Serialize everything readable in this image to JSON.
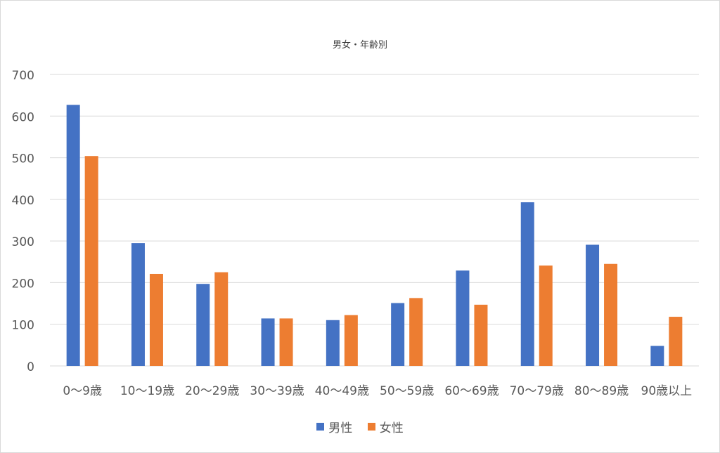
{
  "chart_data": {
    "type": "bar",
    "title": "男女・年齢別",
    "xlabel": "",
    "ylabel": "",
    "ylim": [
      0,
      700
    ],
    "yticks": [
      0,
      100,
      200,
      300,
      400,
      500,
      600,
      700
    ],
    "grid": true,
    "legend_position": "bottom",
    "categories": [
      "0〜9歳",
      "10〜19歳",
      "20〜29歳",
      "30〜39歳",
      "40〜49歳",
      "50〜59歳",
      "60〜69歳",
      "70〜79歳",
      "80〜89歳",
      "90歳以上"
    ],
    "series": [
      {
        "name": "男性",
        "color": "#4472C4",
        "values": [
          627,
          295,
          197,
          114,
          110,
          151,
          229,
          393,
          291,
          48
        ]
      },
      {
        "name": "女性",
        "color": "#ED7D31",
        "values": [
          504,
          221,
          225,
          114,
          122,
          163,
          147,
          241,
          245,
          118
        ]
      }
    ]
  }
}
